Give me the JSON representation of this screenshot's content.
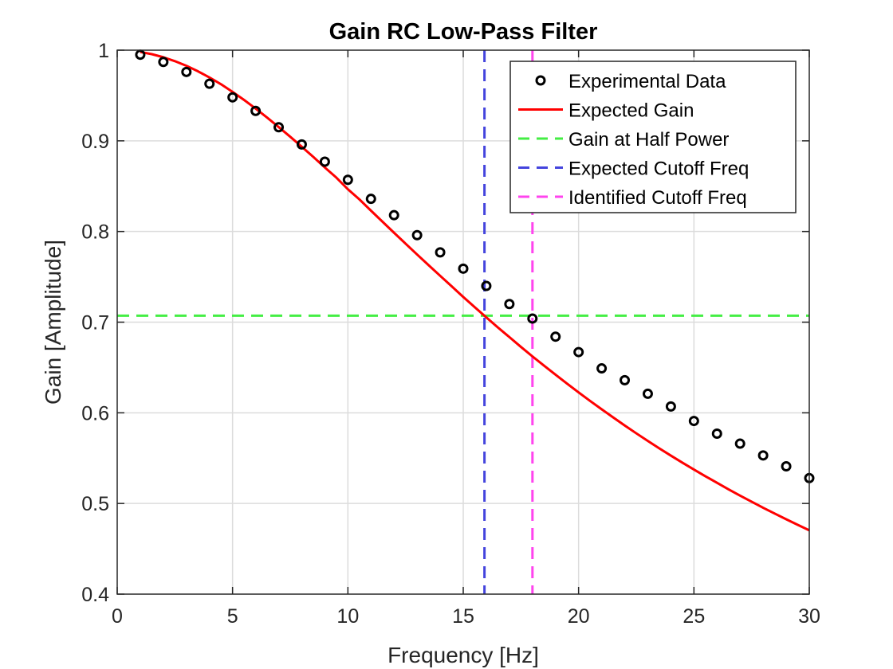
{
  "chart_data": {
    "type": "line",
    "title": "Gain RC Low-Pass Filter",
    "xlabel": "Frequency [Hz]",
    "ylabel": "Gain [Amplitude]",
    "xlim": [
      0,
      30
    ],
    "ylim": [
      0.4,
      1
    ],
    "xticks": [
      0,
      5,
      10,
      15,
      20,
      25,
      30
    ],
    "xtick_labels": [
      "0",
      "5",
      "10",
      "15",
      "20",
      "25",
      "30"
    ],
    "yticks": [
      0.4,
      0.5,
      0.6,
      0.7,
      0.8,
      0.9,
      1.0
    ],
    "ytick_labels": [
      "0.4",
      "0.5",
      "0.6",
      "0.7",
      "0.8",
      "0.9",
      "1"
    ],
    "grid": true,
    "legend_position": "top-right",
    "series": [
      {
        "name": "Experimental Data",
        "kind": "scatter",
        "marker": "open-circle",
        "color": "#000000",
        "x": [
          1,
          2,
          3,
          4,
          5,
          6,
          7,
          8,
          9,
          10,
          11,
          12,
          13,
          14,
          15,
          16,
          17,
          18,
          19,
          20,
          21,
          22,
          23,
          24,
          25,
          26,
          27,
          28,
          29,
          30
        ],
        "y": [
          0.995,
          0.987,
          0.976,
          0.963,
          0.948,
          0.933,
          0.915,
          0.896,
          0.877,
          0.857,
          0.836,
          0.818,
          0.796,
          0.777,
          0.759,
          0.74,
          0.72,
          0.704,
          0.684,
          0.667,
          0.649,
          0.636,
          0.621,
          0.607,
          0.591,
          0.577,
          0.566,
          0.553,
          0.541,
          0.528
        ]
      },
      {
        "name": "Expected Gain",
        "kind": "line",
        "dash": "solid",
        "color": "#ff0000",
        "cutoff_hz": 15.92,
        "x": [
          1,
          1.5,
          2,
          2.5,
          3,
          3.5,
          4,
          4.5,
          5,
          5.5,
          6,
          6.5,
          7,
          7.5,
          8,
          8.5,
          9,
          9.5,
          10,
          10.5,
          11,
          11.5,
          12,
          12.5,
          13,
          13.5,
          14,
          14.5,
          15,
          15.5,
          16,
          16.5,
          17,
          17.5,
          18,
          18.5,
          19,
          19.5,
          20,
          20.5,
          21,
          21.5,
          22,
          22.5,
          23,
          23.5,
          24,
          24.5,
          25,
          25.5,
          26,
          26.5,
          27,
          27.5,
          28,
          28.5,
          29,
          29.5,
          30
        ],
        "y": [
          0.998,
          0.9956,
          0.9922,
          0.9879,
          0.9828,
          0.9767,
          0.9699,
          0.9624,
          0.954,
          0.9451,
          0.9356,
          0.9256,
          0.9152,
          0.9045,
          0.8935,
          0.8823,
          0.8706,
          0.8594,
          0.8466,
          0.8354,
          0.823,
          0.8108,
          0.7986,
          0.7866,
          0.7746,
          0.7628,
          0.7511,
          0.7395,
          0.7278,
          0.7165,
          0.7053,
          0.6942,
          0.6835,
          0.6727,
          0.6622,
          0.6521,
          0.6421,
          0.6322,
          0.6225,
          0.6131,
          0.6039,
          0.5949,
          0.586,
          0.5774,
          0.569,
          0.5608,
          0.5528,
          0.545,
          0.5374,
          0.53,
          0.5228,
          0.5156,
          0.5087,
          0.502,
          0.4953,
          0.4889,
          0.4826,
          0.4764,
          0.4704
        ]
      },
      {
        "name": "Gain at Half Power",
        "kind": "hline",
        "dash": "dashed",
        "color": "#44ee44",
        "y": 0.7071
      },
      {
        "name": "Expected Cutoff Freq",
        "kind": "vline",
        "dash": "dashed",
        "color": "#4444dd",
        "x": 15.92
      },
      {
        "name": "Identified Cutoff Freq",
        "kind": "vline",
        "dash": "dashed",
        "color": "#ff44ee",
        "x": 18
      }
    ]
  }
}
